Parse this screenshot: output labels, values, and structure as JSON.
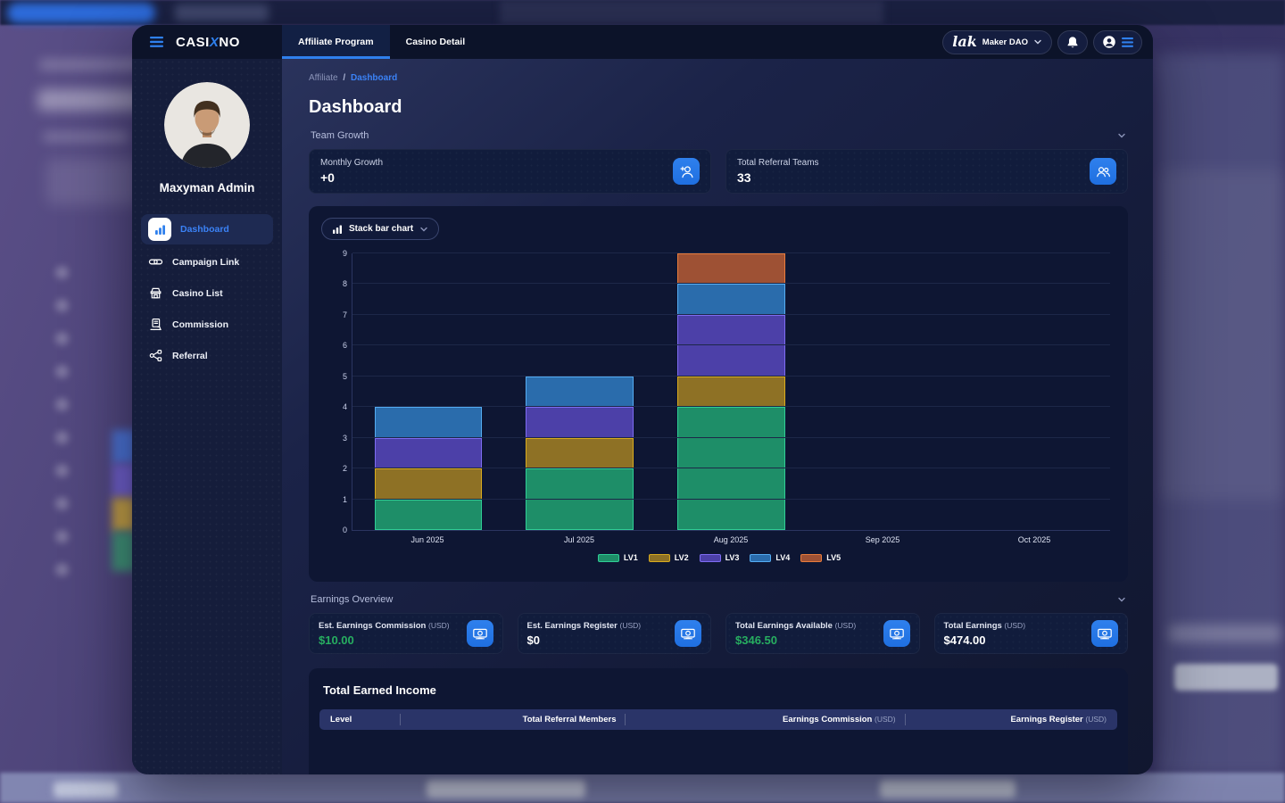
{
  "topbar": {
    "logo": {
      "part1": "CASI",
      "x": "X",
      "part2": "NO"
    },
    "tabs": [
      {
        "label": "Affiliate Program",
        "active": true
      },
      {
        "label": "Casino Detail",
        "active": false
      }
    ],
    "org": {
      "logo_text": "lak",
      "name": "Maker DAO"
    }
  },
  "sidebar": {
    "user_name": "Maxyman Admin",
    "items": [
      {
        "label": "Dashboard",
        "icon": "bar-chart-icon",
        "active": true
      },
      {
        "label": "Campaign Link",
        "icon": "link-icon",
        "active": false
      },
      {
        "label": "Casino List",
        "icon": "store-icon",
        "active": false
      },
      {
        "label": "Commission",
        "icon": "receipt-icon",
        "active": false
      },
      {
        "label": "Referral",
        "icon": "share-network-icon",
        "active": false
      }
    ]
  },
  "breadcrumb": {
    "parent": "Affiliate",
    "separator": "/",
    "current": "Dashboard"
  },
  "page_title": "Dashboard",
  "team_growth": {
    "section_title": "Team Growth",
    "cards": [
      {
        "label": "Monthly Growth",
        "value": "+0",
        "icon": "person-add-icon"
      },
      {
        "label": "Total Referral Teams",
        "value": "33",
        "icon": "people-group-icon"
      }
    ]
  },
  "chart_controls": {
    "selector_label": "Stack bar chart"
  },
  "chart_data": {
    "type": "bar",
    "stacked": true,
    "title": "",
    "categories": [
      "Jun 2025",
      "Jul 2025",
      "Aug 2025",
      "Sep 2025",
      "Oct 2025"
    ],
    "series": [
      {
        "name": "LV1",
        "color": "#1E8E68",
        "border_color": "#2FCE96",
        "values": [
          1,
          2,
          4,
          0,
          0
        ]
      },
      {
        "name": "LV2",
        "color": "#8E7125",
        "border_color": "#D9AB1E",
        "values": [
          1,
          1,
          1,
          0,
          0
        ]
      },
      {
        "name": "LV3",
        "color": "#4C40A8",
        "border_color": "#7E6CF2",
        "values": [
          1,
          1,
          2,
          0,
          0
        ]
      },
      {
        "name": "LV4",
        "color": "#2A6CAC",
        "border_color": "#55ACF2",
        "values": [
          1,
          1,
          1,
          0,
          0
        ]
      },
      {
        "name": "LV5",
        "color": "#9E5134",
        "border_color": "#E87C3C",
        "values": [
          0,
          0,
          1,
          0,
          0
        ]
      }
    ],
    "totals_by_category": [
      4,
      5,
      9,
      0,
      0
    ],
    "ylim": [
      0,
      9
    ],
    "ytick_step": 1,
    "grid": true,
    "legend_position": "bottom"
  },
  "earnings": {
    "section_title": "Earnings Overview",
    "cards": [
      {
        "label": "Est. Earnings Commission",
        "unit": "(USD)",
        "value": "$10.00",
        "value_color": "#27AE60",
        "icon": "cash-icon"
      },
      {
        "label": "Est. Earnings Register",
        "unit": "(USD)",
        "value": "$0",
        "value_color": "#FFFFFF",
        "icon": "cash-icon"
      },
      {
        "label": "Total Earnings Available",
        "unit": "(USD)",
        "value": "$346.50",
        "value_color": "#27AE60",
        "icon": "cash-icon"
      },
      {
        "label": "Total Earnings",
        "unit": "(USD)",
        "value": "$474.00",
        "value_color": "#FFFFFF",
        "icon": "cash-icon"
      }
    ]
  },
  "income_table": {
    "title": "Total Earned Income",
    "columns": [
      {
        "label": "Level",
        "unit": ""
      },
      {
        "label": "Total Referral Members",
        "unit": ""
      },
      {
        "label": "Earnings Commission",
        "unit": "(USD)"
      },
      {
        "label": "Earnings Register",
        "unit": "(USD)"
      }
    ]
  },
  "colors": {
    "accent": "#2F80ED",
    "money_green": "#27AE60",
    "panel": "#0E1633"
  }
}
